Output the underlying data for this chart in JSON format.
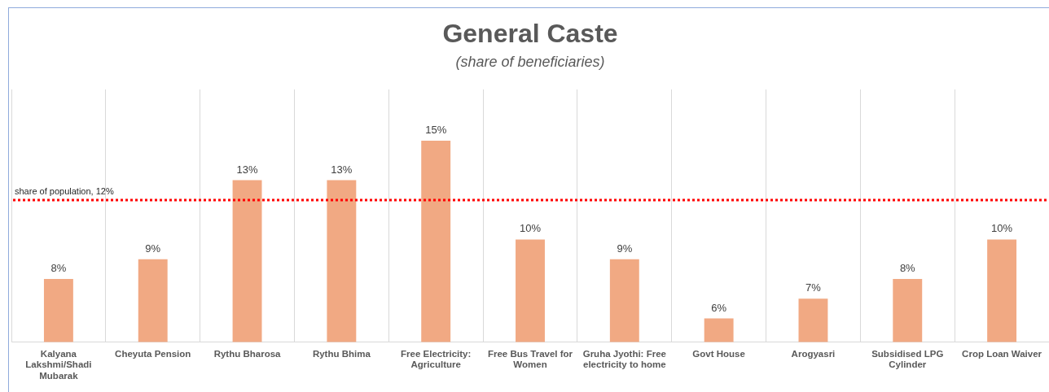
{
  "chart_data": {
    "type": "bar",
    "title": "General Caste",
    "subtitle": "(share of beneficiaries)",
    "categories": [
      "Kalyana Lakshmi/Shadi Mubarak",
      "Cheyuta Pension",
      "Rythu Bharosa",
      "Rythu Bhima",
      "Free Electricity: Agriculture",
      "Free Bus Travel for Women",
      "Gruha Jyothi: Free electricity to home",
      "Govt House",
      "Arogyasri",
      "Subsidised LPG Cylinder",
      "Crop Loan Waiver"
    ],
    "values": [
      8,
      9,
      13,
      13,
      15,
      10,
      9,
      6,
      7,
      8,
      10
    ],
    "value_labels": [
      "8%",
      "9%",
      "13%",
      "13%",
      "15%",
      "10%",
      "9%",
      "6%",
      "7%",
      "8%",
      "10%"
    ],
    "color": "#f1a983",
    "ylim": [
      4.8,
      17.6
    ],
    "tick_labels": "x",
    "grid": "x",
    "legend": false,
    "ref_lines": [
      {
        "axis": "y",
        "value": 12,
        "label": "share of population, 12%",
        "color": "#ff0000",
        "line_style": "dotted"
      }
    ]
  }
}
